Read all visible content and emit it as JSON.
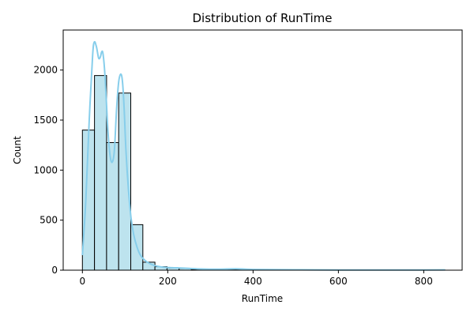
{
  "chart_data": {
    "type": "bar",
    "subtype": "histogram-with-kde",
    "title": "Distribution of RunTime",
    "xlabel": "RunTime",
    "ylabel": "Count",
    "xlim": [
      -45,
      890
    ],
    "ylim": [
      0,
      2400
    ],
    "x_ticks": [
      0,
      200,
      400,
      600,
      800
    ],
    "y_ticks": [
      0,
      500,
      1000,
      1500,
      2000
    ],
    "grid": false,
    "bin_width": 28.33,
    "bins": [
      {
        "start": 0,
        "value": 1400
      },
      {
        "start": 28.33,
        "value": 1945
      },
      {
        "start": 56.67,
        "value": 1275
      },
      {
        "start": 85.0,
        "value": 1770
      },
      {
        "start": 113.33,
        "value": 455
      },
      {
        "start": 141.67,
        "value": 80
      },
      {
        "start": 170.0,
        "value": 35
      },
      {
        "start": 198.33,
        "value": 22
      },
      {
        "start": 226.67,
        "value": 18
      },
      {
        "start": 255.0,
        "value": 6
      },
      {
        "start": 283.33,
        "value": 4
      },
      {
        "start": 311.67,
        "value": 3
      },
      {
        "start": 340.0,
        "value": 5
      },
      {
        "start": 368.33,
        "value": 3
      },
      {
        "start": 396.67,
        "value": 2
      },
      {
        "start": 425.0,
        "value": 1
      },
      {
        "start": 453.33,
        "value": 1
      },
      {
        "start": 481.67,
        "value": 1
      },
      {
        "start": 510.0,
        "value": 1
      },
      {
        "start": 538.33,
        "value": 1
      },
      {
        "start": 566.67,
        "value": 1
      },
      {
        "start": 595.0,
        "value": 1
      },
      {
        "start": 623.33,
        "value": 1
      },
      {
        "start": 651.67,
        "value": 0
      },
      {
        "start": 680.0,
        "value": 0
      },
      {
        "start": 708.33,
        "value": 0
      },
      {
        "start": 736.67,
        "value": 0
      },
      {
        "start": 765.0,
        "value": 0
      },
      {
        "start": 793.33,
        "value": 0
      },
      {
        "start": 821.67,
        "value": 1
      }
    ],
    "kde": {
      "x": [
        0,
        8,
        16,
        24,
        28,
        33,
        38,
        42,
        45,
        48,
        52,
        56,
        60,
        65,
        70,
        75,
        80,
        85,
        90,
        94,
        98,
        102,
        108,
        114,
        120,
        128,
        136,
        146,
        156,
        170,
        190,
        210,
        230,
        250,
        280,
        320,
        360,
        400,
        500,
        600,
        700,
        800,
        850
      ],
      "y": [
        150,
        700,
        1500,
        2150,
        2280,
        2230,
        2120,
        2130,
        2180,
        2170,
        2000,
        1700,
        1380,
        1140,
        1080,
        1200,
        1600,
        1880,
        1960,
        1880,
        1600,
        1200,
        800,
        520,
        360,
        230,
        150,
        100,
        70,
        45,
        30,
        25,
        22,
        18,
        12,
        10,
        14,
        7,
        4,
        2,
        2,
        2,
        3
      ]
    },
    "colors": {
      "bar_fill": "#bde3ee",
      "bar_edge": "#000000",
      "kde_line": "#87ceeb"
    }
  }
}
